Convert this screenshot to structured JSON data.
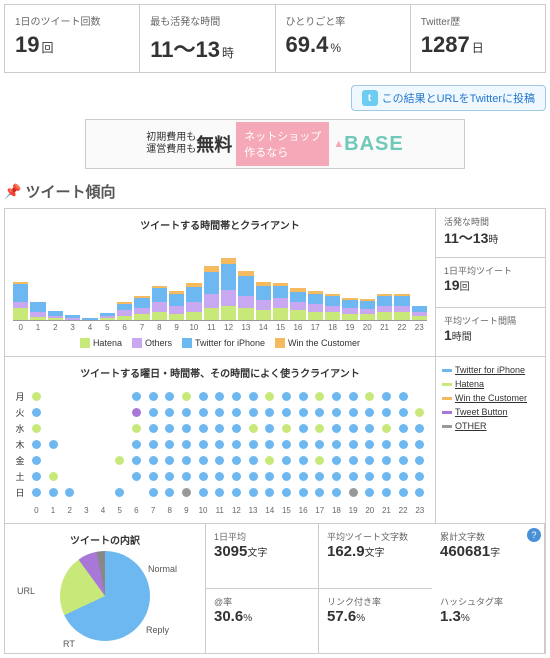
{
  "topStats": [
    {
      "label": "1日のツイート回数",
      "value": "19",
      "unit": "回"
    },
    {
      "label": "最も活発な時間",
      "value": "11～13",
      "unit": "時"
    },
    {
      "label": "ひとりごと率",
      "value": "69.4",
      "unit": "%"
    },
    {
      "label": "Twitter歴",
      "value": "1287",
      "unit": "日"
    }
  ],
  "twitterBtn": "この結果とURLをTwitterに投稿",
  "ad": {
    "t1": "初期費用も",
    "t2": "運営費用も",
    "big": "無料",
    "pink1": "ネットショップ",
    "pink2": "作るなら",
    "base": "BASE"
  },
  "sectionTitle": "ツイート傾向",
  "chart1": {
    "title": "ツイートする時間帯とクライアント",
    "colors": {
      "hatena": "#c8e87a",
      "others": "#c8a8f0",
      "twitter": "#6db8f0",
      "win": "#f5b960"
    },
    "bars": [
      [
        12,
        6,
        18,
        2
      ],
      [
        3,
        5,
        10,
        0
      ],
      [
        2,
        2,
        5,
        0
      ],
      [
        0,
        2,
        3,
        0
      ],
      [
        0,
        0,
        2,
        0
      ],
      [
        2,
        2,
        3,
        0
      ],
      [
        4,
        6,
        6,
        2
      ],
      [
        6,
        6,
        10,
        2
      ],
      [
        8,
        10,
        14,
        2
      ],
      [
        6,
        8,
        12,
        3
      ],
      [
        8,
        10,
        15,
        4
      ],
      [
        12,
        14,
        22,
        6
      ],
      [
        14,
        16,
        26,
        6
      ],
      [
        12,
        12,
        20,
        5
      ],
      [
        10,
        10,
        14,
        4
      ],
      [
        12,
        10,
        12,
        3
      ],
      [
        10,
        8,
        10,
        4
      ],
      [
        8,
        8,
        10,
        3
      ],
      [
        8,
        6,
        10,
        2
      ],
      [
        6,
        6,
        8,
        2
      ],
      [
        6,
        5,
        8,
        2
      ],
      [
        8,
        6,
        10,
        2
      ],
      [
        8,
        6,
        10,
        2
      ],
      [
        4,
        4,
        6,
        0
      ]
    ],
    "legend": [
      "Hatena",
      "Others",
      "Twitter for iPhone",
      "Win the Customer"
    ]
  },
  "sideStats1": [
    {
      "label": "活発な時間",
      "value": "11～13",
      "unit": "時"
    },
    {
      "label": "1日平均ツイート",
      "value": "19",
      "unit": "回"
    },
    {
      "label": "平均ツイート間隔",
      "value": "1",
      "unit": "時間"
    }
  ],
  "chart2": {
    "title": "ツイートする曜日・時間帯、その時間によく使うクライアント",
    "days": [
      "月",
      "火",
      "水",
      "木",
      "金",
      "土",
      "日"
    ],
    "colors": {
      "t": "#6db8f0",
      "h": "#c8e87a",
      "w": "#f5b960",
      "b": "#a878d8",
      "o": "#999"
    },
    "grid": [
      [
        "h",
        "",
        "",
        "",
        "",
        "",
        "t",
        "t",
        "t",
        "h",
        "t",
        "t",
        "t",
        "t",
        "h",
        "t",
        "t",
        "h",
        "t",
        "t",
        "h",
        "t",
        "t",
        ""
      ],
      [
        "t",
        "",
        "",
        "",
        "",
        "",
        "b",
        "t",
        "t",
        "t",
        "t",
        "t",
        "t",
        "t",
        "t",
        "t",
        "t",
        "t",
        "t",
        "t",
        "t",
        "t",
        "t",
        "h"
      ],
      [
        "h",
        "",
        "",
        "",
        "",
        "",
        "h",
        "t",
        "t",
        "t",
        "t",
        "t",
        "t",
        "h",
        "t",
        "h",
        "t",
        "h",
        "t",
        "t",
        "t",
        "h",
        "t",
        "t"
      ],
      [
        "t",
        "t",
        "",
        "",
        "",
        "",
        "t",
        "t",
        "t",
        "t",
        "t",
        "t",
        "t",
        "t",
        "t",
        "t",
        "t",
        "t",
        "t",
        "t",
        "t",
        "t",
        "t",
        "t"
      ],
      [
        "t",
        "",
        "",
        "",
        "",
        "h",
        "t",
        "t",
        "t",
        "t",
        "t",
        "t",
        "t",
        "t",
        "h",
        "t",
        "t",
        "h",
        "t",
        "t",
        "t",
        "t",
        "t",
        "t"
      ],
      [
        "t",
        "h",
        "",
        "",
        "",
        "",
        "t",
        "t",
        "t",
        "t",
        "t",
        "t",
        "t",
        "t",
        "t",
        "t",
        "t",
        "t",
        "t",
        "t",
        "t",
        "t",
        "t",
        "t"
      ],
      [
        "t",
        "t",
        "t",
        "",
        "",
        "t",
        "",
        "t",
        "t",
        "o",
        "t",
        "t",
        "t",
        "t",
        "t",
        "t",
        "t",
        "t",
        "t",
        "o",
        "t",
        "t",
        "t",
        "t"
      ]
    ],
    "legend": [
      {
        "name": "Twitter for iPhone",
        "c": "#6db8f0"
      },
      {
        "name": "Hatena",
        "c": "#c8e87a"
      },
      {
        "name": "Win the Customer",
        "c": "#f5b960"
      },
      {
        "name": "Tweet Button",
        "c": "#a878d8"
      },
      {
        "name": "OTHER",
        "c": "#999"
      }
    ]
  },
  "pie": {
    "title": "ツイートの内訳",
    "slices": [
      {
        "label": "Normal",
        "c": "#6db8f0",
        "pct": 68
      },
      {
        "label": "Reply",
        "c": "#c8e87a",
        "pct": 22
      },
      {
        "label": "RT",
        "c": "#a878d8",
        "pct": 7
      },
      {
        "label": "URL",
        "c": "#888",
        "pct": 3
      }
    ]
  },
  "bottomStats": [
    {
      "label": "1日平均",
      "value": "3095",
      "unit": "文字"
    },
    {
      "label": "平均ツイート文字数",
      "value": "162.9",
      "unit": "文字"
    },
    {
      "label": "累計文字数",
      "value": "460681",
      "unit": "字"
    },
    {
      "label": "@率",
      "value": "30.6",
      "unit": "%"
    },
    {
      "label": "リンク付き率",
      "value": "57.6",
      "unit": "%"
    },
    {
      "label": "ハッシュタグ率",
      "value": "1.3",
      "unit": "%"
    }
  ]
}
